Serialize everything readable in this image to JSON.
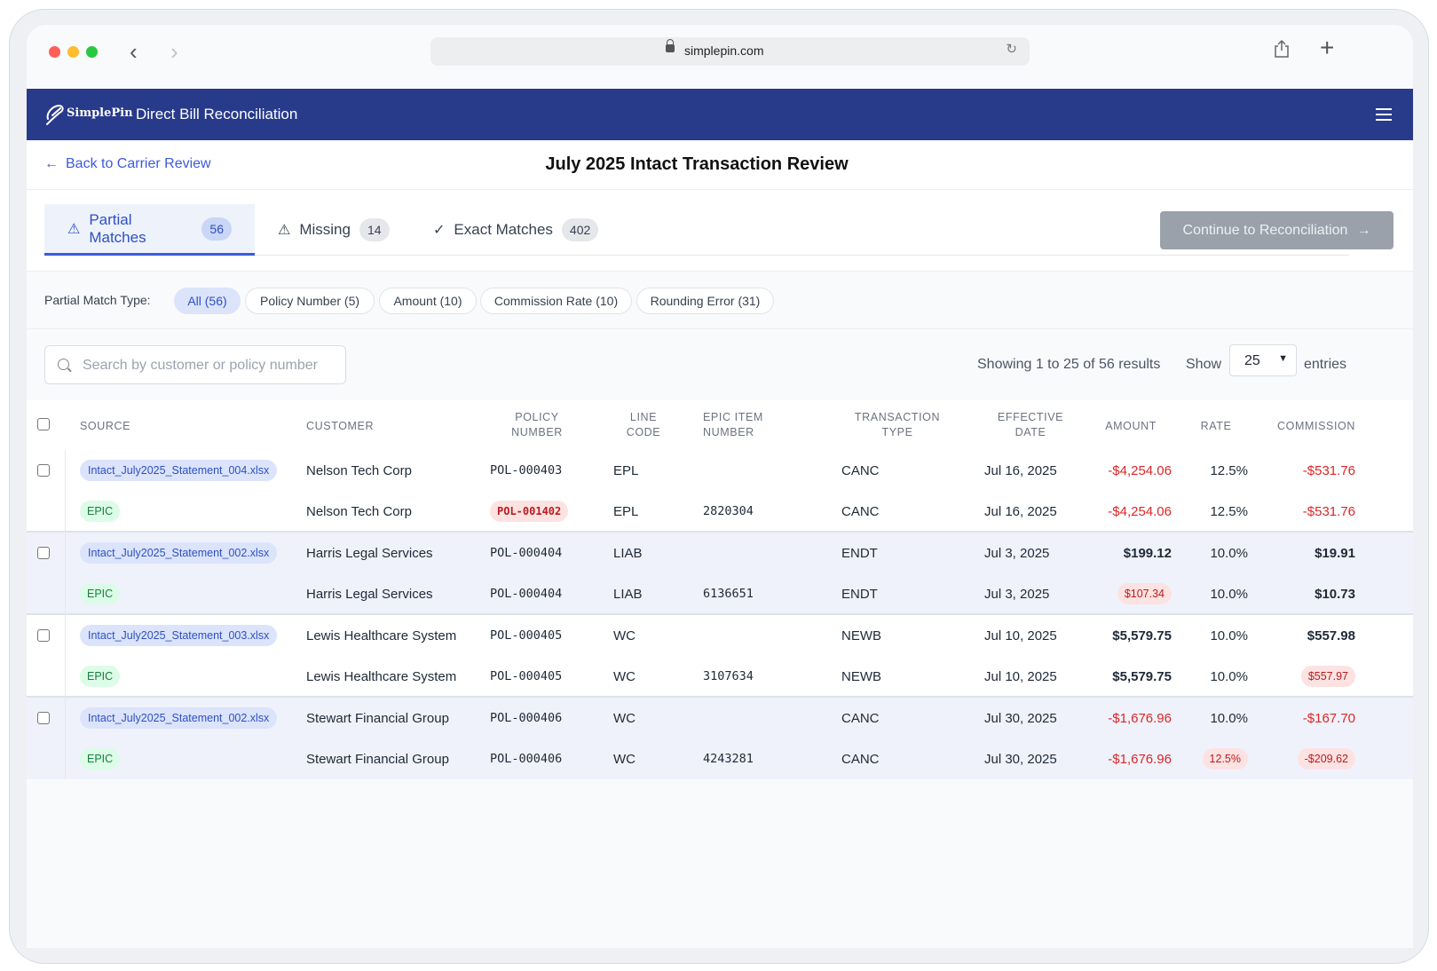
{
  "browser": {
    "url": "simplepin.com"
  },
  "app": {
    "logo_text": "SimplePin",
    "title": "Direct Bill Reconciliation"
  },
  "page": {
    "back_label": "Back to Carrier Review",
    "title": "July 2025 Intact Transaction Review"
  },
  "tabs": [
    {
      "label": "Partial Matches",
      "count": "56"
    },
    {
      "label": "Missing",
      "count": "14"
    },
    {
      "label": "Exact Matches",
      "count": "402"
    }
  ],
  "continue_label": "Continue to Reconciliation",
  "filters": {
    "label": "Partial Match Type:",
    "chips": [
      "All (56)",
      "Policy Number (5)",
      "Amount (10)",
      "Commission Rate (10)",
      "Rounding Error (31)"
    ]
  },
  "search": {
    "placeholder": "Search by customer or policy number"
  },
  "pagination": {
    "showing": "Showing 1 to 25 of 56 results",
    "show_label": "Show",
    "page_size": "25",
    "entries_label": "entries"
  },
  "table": {
    "headers": {
      "source": "SOURCE",
      "customer": "CUSTOMER",
      "policy_1": "POLICY",
      "policy_2": "NUMBER",
      "line_1": "LINE",
      "line_2": "CODE",
      "epic_1": "EPIC ITEM",
      "epic_2": "NUMBER",
      "tx_1": "TRANSACTION",
      "tx_2": "TYPE",
      "eff_1": "EFFECTIVE",
      "eff_2": "DATE",
      "amount": "AMOUNT",
      "rate": "RATE",
      "commission": "COMMISSION"
    },
    "groups": [
      {
        "statement": {
          "source": "Intact_July2025_Statement_004.xlsx",
          "customer": "Nelson Tech Corp",
          "policy": "POL-000403",
          "line": "EPL",
          "epic_item": "",
          "tx_type": "CANC",
          "date": "Jul 16, 2025",
          "amount": "-$4,254.06",
          "rate": "12.5%",
          "commission": "-$531.76"
        },
        "epic": {
          "source": "EPIC",
          "customer": "Nelson Tech Corp",
          "policy": "POL-001402",
          "line": "EPL",
          "epic_item": "2820304",
          "tx_type": "CANC",
          "date": "Jul 16, 2025",
          "amount": "-$4,254.06",
          "rate": "12.5%",
          "commission": "-$531.76"
        }
      },
      {
        "statement": {
          "source": "Intact_July2025_Statement_002.xlsx",
          "customer": "Harris Legal Services",
          "policy": "POL-000404",
          "line": "LIAB",
          "epic_item": "",
          "tx_type": "ENDT",
          "date": "Jul 3, 2025",
          "amount": "$199.12",
          "rate": "10.0%",
          "commission": "$19.91"
        },
        "epic": {
          "source": "EPIC",
          "customer": "Harris Legal Services",
          "policy": "POL-000404",
          "line": "LIAB",
          "epic_item": "6136651",
          "tx_type": "ENDT",
          "date": "Jul 3, 2025",
          "amount": "$107.34",
          "rate": "10.0%",
          "commission": "$10.73"
        }
      },
      {
        "statement": {
          "source": "Intact_July2025_Statement_003.xlsx",
          "customer": "Lewis Healthcare System",
          "policy": "POL-000405",
          "line": "WC",
          "epic_item": "",
          "tx_type": "NEWB",
          "date": "Jul 10, 2025",
          "amount": "$5,579.75",
          "rate": "10.0%",
          "commission": "$557.98"
        },
        "epic": {
          "source": "EPIC",
          "customer": "Lewis Healthcare System",
          "policy": "POL-000405",
          "line": "WC",
          "epic_item": "3107634",
          "tx_type": "NEWB",
          "date": "Jul 10, 2025",
          "amount": "$5,579.75",
          "rate": "10.0%",
          "commission": "$557.97"
        }
      },
      {
        "statement": {
          "source": "Intact_July2025_Statement_002.xlsx",
          "customer": "Stewart Financial Group",
          "policy": "POL-000406",
          "line": "WC",
          "epic_item": "",
          "tx_type": "CANC",
          "date": "Jul 30, 2025",
          "amount": "-$1,676.96",
          "rate": "10.0%",
          "commission": "-$167.70"
        },
        "epic": {
          "source": "EPIC",
          "customer": "Stewart Financial Group",
          "policy": "POL-000406",
          "line": "WC",
          "epic_item": "4243281",
          "tx_type": "CANC",
          "date": "Jul 30, 2025",
          "amount": "-$1,676.96",
          "rate": "12.5%",
          "commission": "-$209.62"
        }
      }
    ]
  },
  "colors": {
    "brand": "#283a8a",
    "accent": "#3b5bdb",
    "negative": "#dc2626",
    "mismatch_bg": "#fde2e2"
  }
}
